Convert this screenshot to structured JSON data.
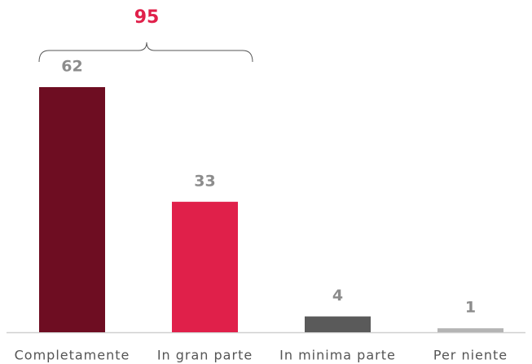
{
  "chart_data": {
    "type": "bar",
    "categories": [
      "Completamente",
      "In gran parte",
      "In minima parte",
      "Per niente"
    ],
    "values": [
      62,
      33,
      4,
      1
    ],
    "colors": [
      "#6e0d22",
      "#e0204a",
      "#5a5a5a",
      "#b4b4b4"
    ],
    "annotation": 95
  }
}
